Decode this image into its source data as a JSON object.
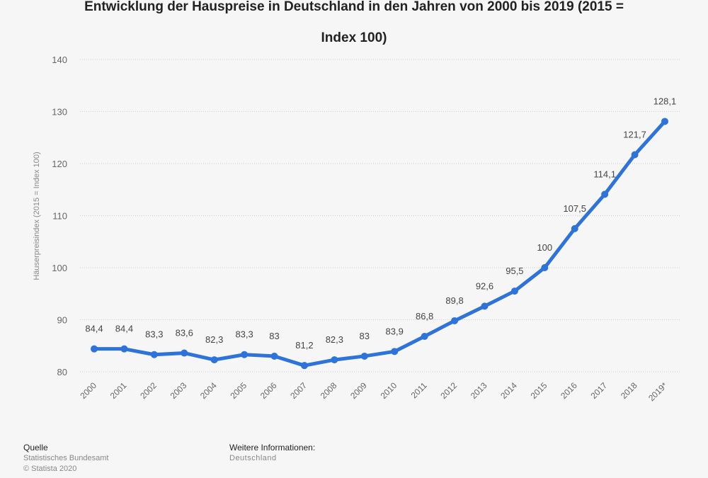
{
  "chart_data": {
    "type": "line",
    "title_lines": [
      "Entwicklung der Hauspreise in Deutschland in den Jahren von 2000 bis 2019 (2015 =",
      "Index 100)"
    ],
    "title": "Entwicklung der Hauspreise in Deutschland in den Jahren von 2000 bis 2019 (2015 = Index 100)",
    "xlabel": "",
    "ylabel": "Häuserpreisindex (2015 = Index 100)",
    "ylim": [
      80,
      140
    ],
    "yticks": [
      80,
      90,
      100,
      110,
      120,
      130,
      140
    ],
    "grid": true,
    "legend": "none",
    "color": "#2d73d9",
    "categories": [
      "2000",
      "2001",
      "2002",
      "2003",
      "2004",
      "2005",
      "2006",
      "2007",
      "2008",
      "2009",
      "2010",
      "2011",
      "2012",
      "2013",
      "2014",
      "2015",
      "2016",
      "2017",
      "2018",
      "2019*"
    ],
    "values": [
      84.4,
      84.4,
      83.3,
      83.6,
      82.3,
      83.3,
      83,
      81.2,
      82.3,
      83,
      83.9,
      86.8,
      89.8,
      92.6,
      95.5,
      100,
      107.5,
      114.1,
      121.7,
      128.1
    ],
    "data_labels": [
      "84,4",
      "84,4",
      "83,3",
      "83,6",
      "82,3",
      "83,3",
      "83",
      "81,2",
      "82,3",
      "83",
      "83,9",
      "86,8",
      "89,8",
      "92,6",
      "95,5",
      "100",
      "107,5",
      "114,1",
      "121,7",
      "128,1"
    ]
  },
  "footer": {
    "source_heading": "Quelle",
    "source": "Statistisches Bundesamt",
    "copyright": "© Statista 2020",
    "info_heading": "Weitere Informationen:",
    "info": "Deutschland"
  }
}
